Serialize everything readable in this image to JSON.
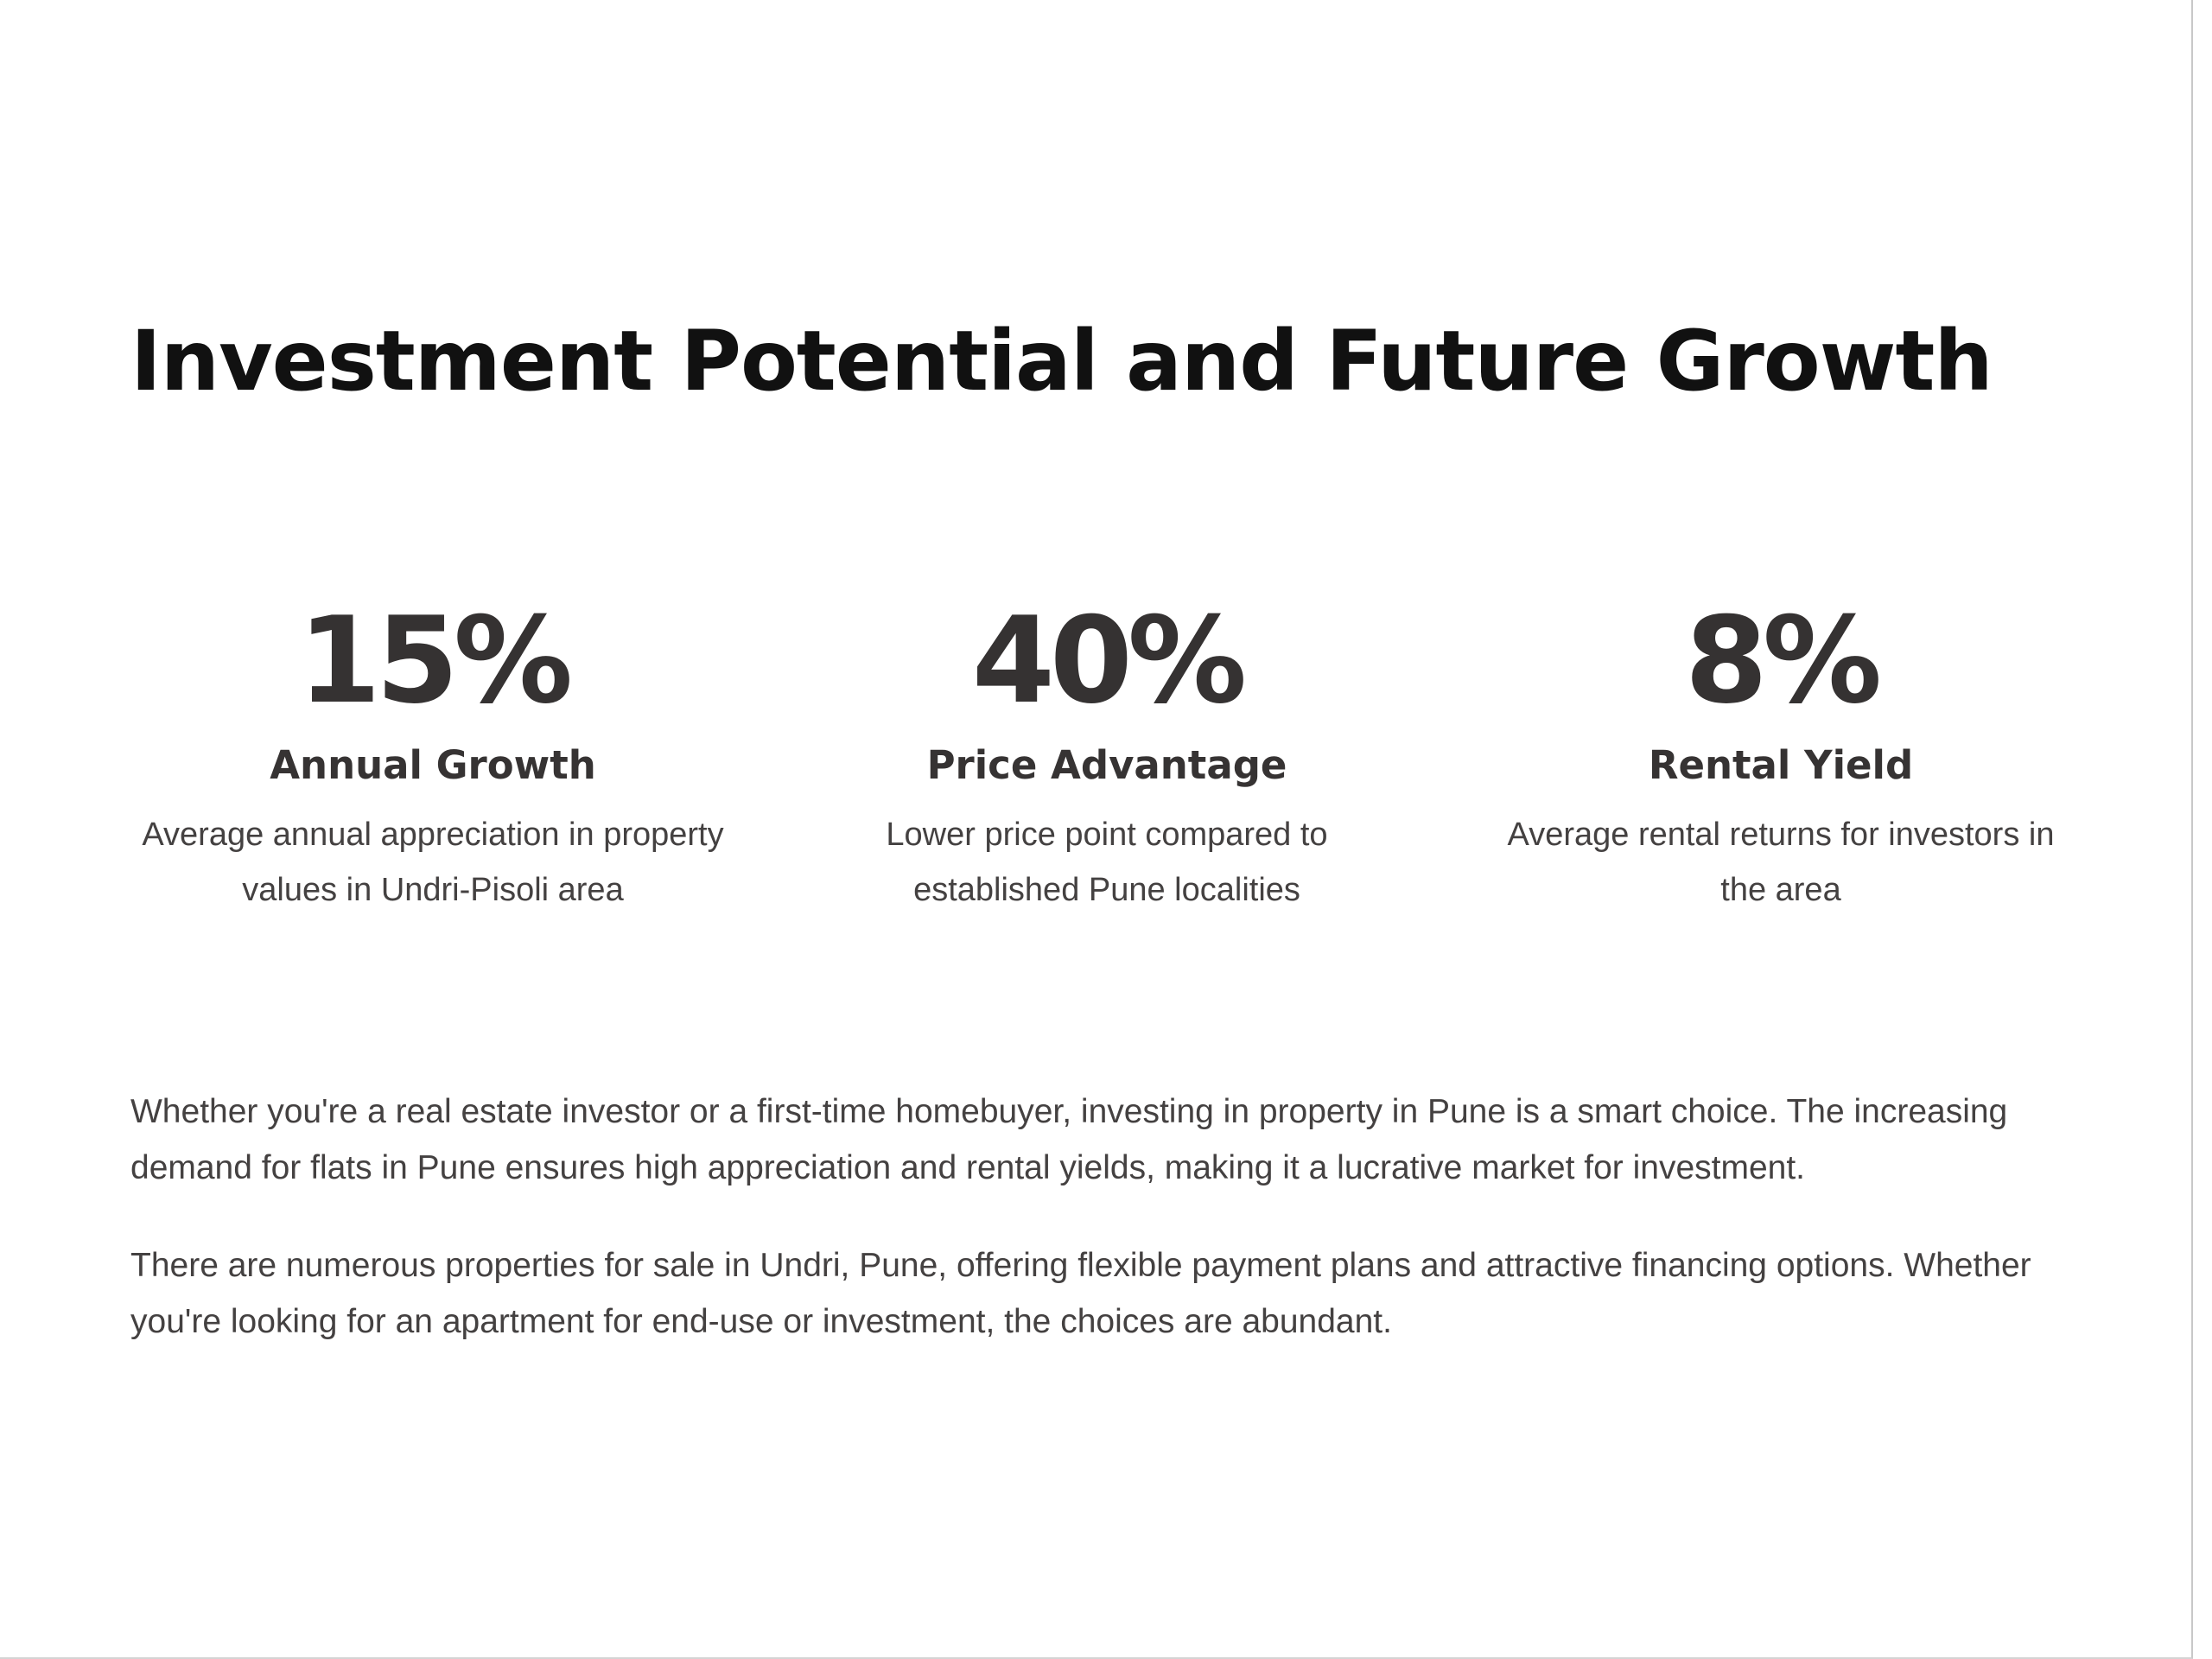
{
  "section": {
    "title": "Investment Potential and Future Growth",
    "stats": [
      {
        "value": "15%",
        "label": "Annual Growth",
        "description": "Average annual appreciation in property values in Undri-Pisoli area"
      },
      {
        "value": "40%",
        "label": "Price Advantage",
        "description": "Lower price point compared to established Pune localities"
      },
      {
        "value": "8%",
        "label": "Rental Yield",
        "description": "Average rental returns for investors in the area"
      }
    ],
    "paragraphs": [
      "Whether you're a real estate investor or a first-time homebuyer, investing in property in Pune is a smart choice. The increasing demand for flats in Pune ensures high appreciation and rental yields, making it a lucrative market for investment.",
      "There are numerous properties for sale in Undri, Pune, offering flexible payment plans and attractive financing options. Whether you're looking for an apartment for end-use or investment, the choices are abundant."
    ]
  }
}
